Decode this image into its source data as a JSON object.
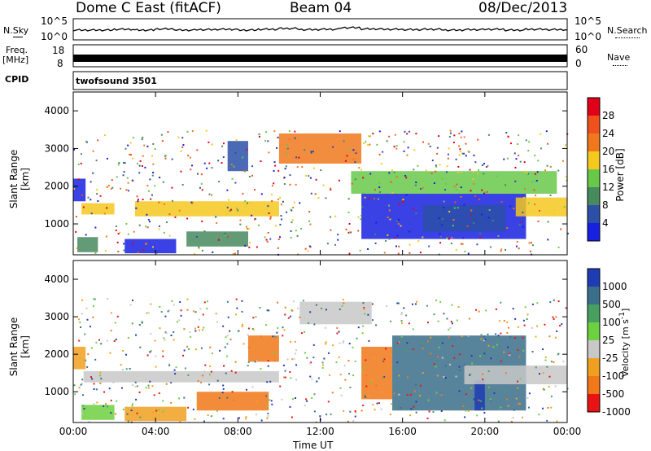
{
  "header": {
    "station": "Dome C East (fitACF)",
    "beam": "Beam 04",
    "date": "08/Dec/2013"
  },
  "top_panels": {
    "nsky_label": "N.Sky",
    "nsky_ticks": [
      "10^5",
      "10^0"
    ],
    "nsearch_label": "N.Search",
    "freq_label": "Freq.",
    "freq_unit": "[MHz]",
    "freq_ticks": [
      "18",
      "8"
    ],
    "nave_label": "Nave",
    "nave_ticks": [
      "60",
      "0"
    ],
    "cpid_label": "CPID",
    "cpid_value": "twofsound 3501"
  },
  "chart_data": [
    {
      "type": "heatmap",
      "name": "power",
      "ylabel": "Slant Range [km]",
      "yticks": [
        1000,
        2000,
        3000,
        4000
      ],
      "ylim": [
        180,
        4500
      ],
      "xlim": [
        0,
        24
      ],
      "xticks": [
        "00:00",
        "04:00",
        "08:00",
        "12:00",
        "16:00",
        "20:00",
        "00:00"
      ],
      "colorbar": {
        "label": "Power [dB]",
        "ticks": [
          "28",
          "24",
          "20",
          "16",
          "12",
          "8",
          "4"
        ],
        "colors": [
          "#e0001a",
          "#f0501c",
          "#f0781c",
          "#f5c81e",
          "#68c84a",
          "#468a5e",
          "#2c50a8",
          "#1820e0"
        ]
      },
      "regions": [
        {
          "t0": 0.0,
          "t1": 0.6,
          "r0": 1600,
          "r1": 2200,
          "level": 7
        },
        {
          "t0": 0.4,
          "t1": 2.0,
          "r0": 1250,
          "r1": 1550,
          "level": 3
        },
        {
          "t0": 0.2,
          "t1": 1.2,
          "r0": 250,
          "r1": 650,
          "level": 5
        },
        {
          "t0": 2.5,
          "t1": 5.0,
          "r0": 220,
          "r1": 600,
          "level": 7
        },
        {
          "t0": 5.5,
          "t1": 8.5,
          "r0": 400,
          "r1": 800,
          "level": 5
        },
        {
          "t0": 3.0,
          "t1": 10.0,
          "r0": 1200,
          "r1": 1600,
          "level": 3
        },
        {
          "t0": 7.5,
          "t1": 8.5,
          "r0": 2400,
          "r1": 3200,
          "level": 6
        },
        {
          "t0": 10.0,
          "t1": 14.0,
          "r0": 2600,
          "r1": 3400,
          "level": 2
        },
        {
          "t0": 13.5,
          "t1": 23.5,
          "r0": 1800,
          "r1": 2400,
          "level": 4
        },
        {
          "t0": 14.0,
          "t1": 22.0,
          "r0": 600,
          "r1": 1800,
          "level": 7
        },
        {
          "t0": 17.0,
          "t1": 21.0,
          "r0": 800,
          "r1": 1500,
          "level": 6
        },
        {
          "t0": 21.5,
          "t1": 24.0,
          "r0": 1200,
          "r1": 1700,
          "level": 3
        }
      ]
    },
    {
      "type": "heatmap",
      "name": "velocity",
      "ylabel": "Slant Range [km]",
      "yticks": [
        1000,
        2000,
        3000,
        4000
      ],
      "ylim": [
        180,
        4500
      ],
      "xlim": [
        0,
        24
      ],
      "xticks": [
        "00:00",
        "04:00",
        "08:00",
        "12:00",
        "16:00",
        "20:00",
        "00:00"
      ],
      "xlabel": "Time UT",
      "colorbar": {
        "label": "Velocity [m s^-1]",
        "ticks": [
          "1000",
          "500",
          "100",
          "25",
          "-25",
          "-100",
          "-500",
          "-1000"
        ],
        "colors": [
          "#1e3cb4",
          "#3a6e8a",
          "#48a060",
          "#6cd040",
          "#c8c8c8",
          "#f0a020",
          "#f07818",
          "#e81414"
        ]
      },
      "regions": [
        {
          "t0": 0.0,
          "t1": 0.6,
          "r0": 1600,
          "r1": 2200,
          "level": 5
        },
        {
          "t0": 0.4,
          "t1": 2.0,
          "r0": 250,
          "r1": 650,
          "level": 3
        },
        {
          "t0": 2.5,
          "t1": 5.5,
          "r0": 220,
          "r1": 600,
          "level": 5
        },
        {
          "t0": 6.0,
          "t1": 9.5,
          "r0": 500,
          "r1": 1000,
          "level": 6
        },
        {
          "t0": 8.5,
          "t1": 10.0,
          "r0": 1800,
          "r1": 2500,
          "level": 6
        },
        {
          "t0": 0.5,
          "t1": 10.0,
          "r0": 1250,
          "r1": 1550,
          "level": 4
        },
        {
          "t0": 11.0,
          "t1": 14.5,
          "r0": 2800,
          "r1": 3400,
          "level": 4
        },
        {
          "t0": 14.0,
          "t1": 15.5,
          "r0": 800,
          "r1": 2200,
          "level": 6
        },
        {
          "t0": 15.5,
          "t1": 22.0,
          "r0": 500,
          "r1": 2500,
          "level": 1
        },
        {
          "t0": 19.5,
          "t1": 20.0,
          "r0": 500,
          "r1": 1300,
          "level": 0
        },
        {
          "t0": 19.0,
          "t1": 24.0,
          "r0": 1200,
          "r1": 1700,
          "level": 4
        }
      ]
    }
  ],
  "nsky_series": [
    0.55,
    0.55,
    0.6,
    0.55,
    0.62,
    0.55,
    0.58,
    0.6,
    0.55,
    0.6,
    0.65,
    0.58,
    0.6,
    0.7,
    0.62,
    0.6,
    0.58,
    0.6,
    0.55,
    0.58,
    0.6,
    0.55,
    0.6,
    0.58,
    0.55
  ]
}
